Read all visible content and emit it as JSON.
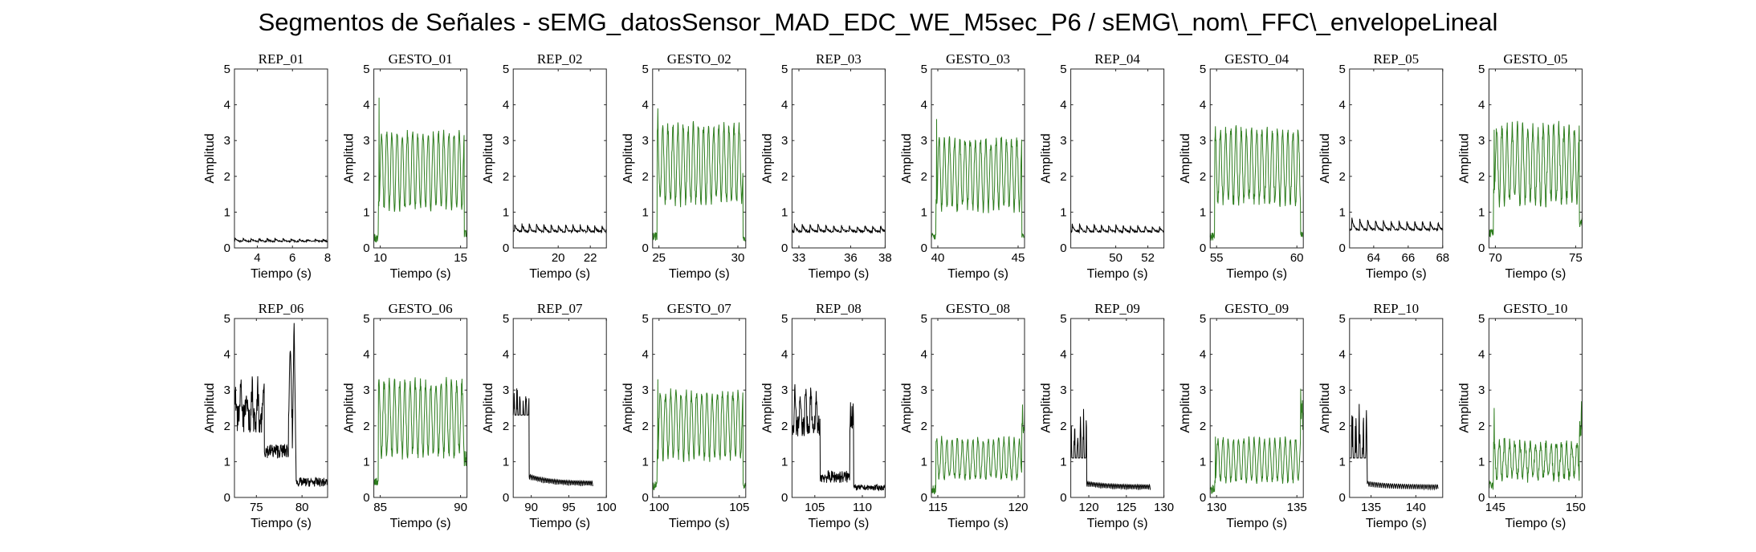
{
  "figure": {
    "title": "Segmentos de Señales - sEMG_datosSensor_MAD_EDC_WE_M5sec_P6 / sEMG\\_nom\\_FFC\\_envelopeLineal",
    "colors": {
      "rep": "#000000",
      "gesto": "#2e7d1e"
    }
  },
  "chart_data": [
    {
      "title": "REP_01",
      "type": "line",
      "xlim": [
        2.7,
        8
      ],
      "ylim": [
        0,
        5
      ],
      "xticks": [
        4,
        6,
        8
      ],
      "yticks": [
        0,
        1,
        2,
        3,
        4,
        5
      ],
      "xlabel": "Tiempo (s)",
      "ylabel": "Amplitud",
      "color": "#000000",
      "pattern": "rep_low",
      "params": [
        0.18,
        0.28,
        0.13
      ]
    },
    {
      "title": "GESTO_01",
      "type": "line",
      "xlim": [
        9.6,
        15.4
      ],
      "ylim": [
        0,
        5
      ],
      "xticks": [
        10,
        15
      ],
      "yticks": [
        0,
        1,
        2,
        3,
        4,
        5
      ],
      "xlabel": "Tiempo (s)",
      "ylabel": "Amplitud",
      "color": "#2e7d1e",
      "pattern": "gesto",
      "params": [
        2.2,
        4.2,
        1.0,
        3.3,
        0.5,
        0.15,
        0.7
      ]
    },
    {
      "title": "REP_02",
      "type": "line",
      "xlim": [
        17.2,
        23
      ],
      "ylim": [
        0,
        5
      ],
      "xticks": [
        20,
        22
      ],
      "yticks": [
        0,
        1,
        2,
        3,
        4,
        5
      ],
      "xlabel": "Tiempo (s)",
      "ylabel": "Amplitud",
      "color": "#000000",
      "pattern": "rep_low",
      "params": [
        0.45,
        0.72,
        0.2
      ]
    },
    {
      "title": "GESTO_02",
      "type": "line",
      "xlim": [
        24.6,
        30.5
      ],
      "ylim": [
        0,
        5
      ],
      "xticks": [
        25,
        30
      ],
      "yticks": [
        0,
        1,
        2,
        3,
        4,
        5
      ],
      "xlabel": "Tiempo (s)",
      "ylabel": "Amplitud",
      "color": "#2e7d1e",
      "pattern": "gesto",
      "params": [
        2.3,
        3.9,
        1.2,
        3.5,
        0.3,
        0.2,
        1.0
      ]
    },
    {
      "title": "REP_03",
      "type": "line",
      "xlim": [
        32.6,
        38
      ],
      "ylim": [
        0,
        5
      ],
      "xticks": [
        33,
        36,
        38
      ],
      "yticks": [
        0,
        1,
        2,
        3,
        4,
        5
      ],
      "xlabel": "Tiempo (s)",
      "ylabel": "Amplitud",
      "color": "#000000",
      "pattern": "rep_low",
      "params": [
        0.45,
        0.7,
        0.2
      ]
    },
    {
      "title": "GESTO_03",
      "type": "line",
      "xlim": [
        39.6,
        45.4
      ],
      "ylim": [
        0,
        5
      ],
      "xticks": [
        40,
        45
      ],
      "yticks": [
        0,
        1,
        2,
        3,
        4,
        5
      ],
      "xlabel": "Tiempo (s)",
      "ylabel": "Amplitud",
      "color": "#2e7d1e",
      "pattern": "gesto",
      "params": [
        2.1,
        3.6,
        1.0,
        3.1,
        0.4,
        0.2,
        0.9
      ]
    },
    {
      "title": "REP_04",
      "type": "line",
      "xlim": [
        47.2,
        53
      ],
      "ylim": [
        0,
        5
      ],
      "xticks": [
        50,
        52
      ],
      "yticks": [
        0,
        1,
        2,
        3,
        4,
        5
      ],
      "xlabel": "Tiempo (s)",
      "ylabel": "Amplitud",
      "color": "#000000",
      "pattern": "rep_low",
      "params": [
        0.45,
        0.7,
        0.2
      ]
    },
    {
      "title": "GESTO_04",
      "type": "line",
      "xlim": [
        54.6,
        60.4
      ],
      "ylim": [
        0,
        5
      ],
      "xticks": [
        55,
        60
      ],
      "yticks": [
        0,
        1,
        2,
        3,
        4,
        5
      ],
      "xlabel": "Tiempo (s)",
      "ylabel": "Amplitud",
      "color": "#2e7d1e",
      "pattern": "gesto",
      "params": [
        2.2,
        3.4,
        1.2,
        3.4,
        0.5,
        0.2,
        1.0
      ]
    },
    {
      "title": "REP_05",
      "type": "line",
      "xlim": [
        62.6,
        68
      ],
      "ylim": [
        0,
        5
      ],
      "xticks": [
        64,
        66,
        68
      ],
      "yticks": [
        0,
        1,
        2,
        3,
        4,
        5
      ],
      "xlabel": "Tiempo (s)",
      "ylabel": "Amplitud",
      "color": "#000000",
      "pattern": "rep_low",
      "params": [
        0.5,
        0.85,
        0.2
      ]
    },
    {
      "title": "GESTO_05",
      "type": "line",
      "xlim": [
        69.6,
        75.4
      ],
      "ylim": [
        0,
        5
      ],
      "xticks": [
        70,
        75
      ],
      "yticks": [
        0,
        1,
        2,
        3,
        4,
        5
      ],
      "xlabel": "Tiempo (s)",
      "ylabel": "Amplitud",
      "color": "#2e7d1e",
      "pattern": "gesto",
      "params": [
        2.3,
        3.3,
        1.2,
        3.5,
        0.9,
        0.3,
        1.2
      ]
    },
    {
      "title": "REP_06",
      "type": "line",
      "xlim": [
        72.6,
        82.8
      ],
      "ylim": [
        0,
        5
      ],
      "xticks": [
        75,
        80
      ],
      "yticks": [
        0,
        1,
        2,
        3,
        4,
        5
      ],
      "xlabel": "Tiempo (s)",
      "ylabel": "Amplitud",
      "color": "#000000",
      "pattern": "rep_burst",
      "params": [
        2.6,
        3.4,
        1.1,
        4.1,
        5.0,
        0.3
      ]
    },
    {
      "title": "GESTO_06",
      "type": "line",
      "xlim": [
        84.6,
        90.4
      ],
      "ylim": [
        0,
        5
      ],
      "xticks": [
        85,
        90
      ],
      "yticks": [
        0,
        1,
        2,
        3,
        4,
        5
      ],
      "xlabel": "Tiempo (s)",
      "ylabel": "Amplitud",
      "color": "#2e7d1e",
      "pattern": "gesto",
      "params": [
        2.2,
        3.3,
        1.1,
        3.3,
        1.3,
        0.3,
        1.0
      ]
    },
    {
      "title": "REP_07",
      "type": "line",
      "xlim": [
        87.6,
        100
      ],
      "ylim": [
        0,
        5
      ],
      "xticks": [
        90,
        95,
        100
      ],
      "yticks": [
        0,
        1,
        2,
        3,
        4,
        5
      ],
      "xlabel": "Tiempo (s)",
      "ylabel": "Amplitud",
      "color": "#000000",
      "pattern": "rep_decay",
      "params": [
        2.3,
        3.3,
        0.5,
        0.3,
        98.2
      ]
    },
    {
      "title": "GESTO_07",
      "type": "line",
      "xlim": [
        99.6,
        105.4
      ],
      "ylim": [
        0,
        5
      ],
      "xticks": [
        100,
        105
      ],
      "yticks": [
        0,
        1,
        2,
        3,
        4,
        5
      ],
      "xlabel": "Tiempo (s)",
      "ylabel": "Amplitud",
      "color": "#2e7d1e",
      "pattern": "gesto",
      "params": [
        2.1,
        3.3,
        1.0,
        3.0,
        0.4,
        0.2,
        0.8
      ]
    },
    {
      "title": "REP_08",
      "type": "line",
      "xlim": [
        102.6,
        112.4
      ],
      "ylim": [
        0,
        5
      ],
      "xticks": [
        105,
        110
      ],
      "yticks": [
        0,
        1,
        2,
        3,
        4,
        5
      ],
      "xlabel": "Tiempo (s)",
      "ylabel": "Amplitud",
      "color": "#000000",
      "pattern": "rep_burst2",
      "params": [
        2.3,
        3.2,
        0.4,
        3.0,
        0.2
      ]
    },
    {
      "title": "GESTO_08",
      "type": "line",
      "xlim": [
        114.6,
        120.4
      ],
      "ylim": [
        0,
        5
      ],
      "xticks": [
        115,
        120
      ],
      "yticks": [
        0,
        1,
        2,
        3,
        4,
        5
      ],
      "xlabel": "Tiempo (s)",
      "ylabel": "Amplitud",
      "color": "#2e7d1e",
      "pattern": "gesto",
      "params": [
        1.0,
        1.6,
        0.5,
        1.7,
        2.6,
        0.1,
        0.6
      ]
    },
    {
      "title": "REP_09",
      "type": "line",
      "xlim": [
        117.6,
        130
      ],
      "ylim": [
        0,
        5
      ],
      "xticks": [
        120,
        125,
        130
      ],
      "yticks": [
        0,
        1,
        2,
        3,
        4,
        5
      ],
      "xlabel": "Tiempo (s)",
      "ylabel": "Amplitud",
      "color": "#000000",
      "pattern": "rep_decay",
      "params": [
        1.1,
        2.6,
        0.3,
        0.2,
        128.2
      ]
    },
    {
      "title": "GESTO_09",
      "type": "line",
      "xlim": [
        129.6,
        135.4
      ],
      "ylim": [
        0,
        5
      ],
      "xticks": [
        130,
        135
      ],
      "yticks": [
        0,
        1,
        2,
        3,
        4,
        5
      ],
      "xlabel": "Tiempo (s)",
      "ylabel": "Amplitud",
      "color": "#2e7d1e",
      "pattern": "gesto",
      "params": [
        1.0,
        1.7,
        0.4,
        1.7,
        3.1,
        0.1,
        0.5
      ]
    },
    {
      "title": "REP_10",
      "type": "line",
      "xlim": [
        132.6,
        143
      ],
      "ylim": [
        0,
        5
      ],
      "xticks": [
        135,
        140
      ],
      "yticks": [
        0,
        1,
        2,
        3,
        4,
        5
      ],
      "xlabel": "Tiempo (s)",
      "ylabel": "Amplitud",
      "color": "#000000",
      "pattern": "rep_decay",
      "params": [
        1.1,
        3.1,
        0.3,
        0.2,
        142.5
      ]
    },
    {
      "title": "GESTO_10",
      "type": "line",
      "xlim": [
        144.6,
        150.4
      ],
      "ylim": [
        0,
        5
      ],
      "xticks": [
        145,
        150
      ],
      "yticks": [
        0,
        1,
        2,
        3,
        4,
        5
      ],
      "xlabel": "Tiempo (s)",
      "ylabel": "Amplitud",
      "color": "#2e7d1e",
      "pattern": "gesto",
      "params": [
        1.0,
        2.5,
        0.5,
        1.6,
        2.8,
        0.2,
        0.9
      ]
    }
  ]
}
